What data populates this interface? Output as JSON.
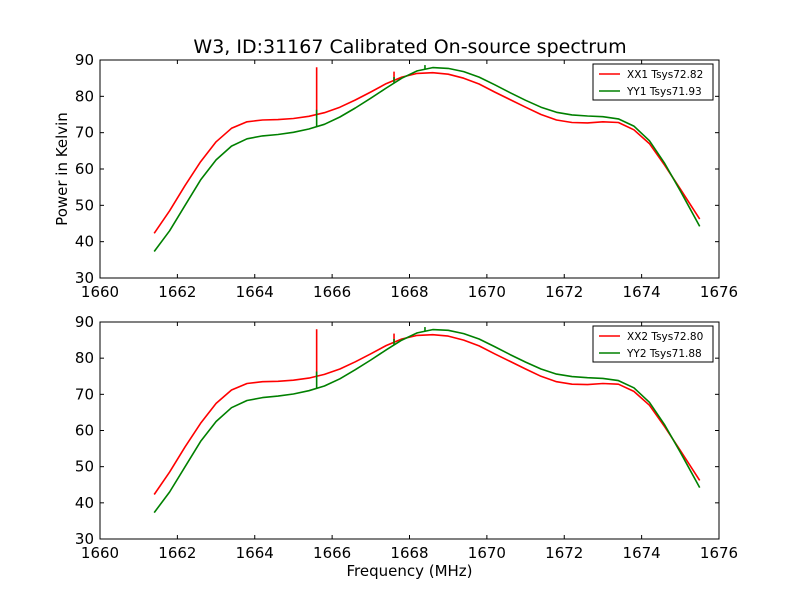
{
  "figure": {
    "title": "W3, ID:31167 Calibrated On-source spectrum"
  },
  "chart_data": [
    {
      "type": "line",
      "title": "W3, ID:31167 Calibrated On-source spectrum",
      "xlabel": "",
      "ylabel": "Power in Kelvin",
      "xlim": [
        1660,
        1676
      ],
      "ylim": [
        30,
        90
      ],
      "xticks": [
        1660,
        1662,
        1664,
        1666,
        1668,
        1670,
        1672,
        1674,
        1676
      ],
      "yticks": [
        30,
        40,
        50,
        60,
        70,
        80,
        90
      ],
      "legend": "top-right",
      "grid": false,
      "series": [
        {
          "name": "XX1 Tsys72.82",
          "color": "#ff0000",
          "x": [
            1661.4,
            1661.8,
            1662.2,
            1662.6,
            1663.0,
            1663.4,
            1663.8,
            1664.2,
            1664.6,
            1665.0,
            1665.4,
            1665.8,
            1666.2,
            1666.6,
            1667.0,
            1667.4,
            1667.8,
            1668.2,
            1668.6,
            1669.0,
            1669.4,
            1669.8,
            1670.2,
            1670.6,
            1671.0,
            1671.4,
            1671.8,
            1672.2,
            1672.6,
            1673.0,
            1673.4,
            1673.8,
            1674.2,
            1674.6,
            1675.0,
            1675.5
          ],
          "y": [
            42.3,
            48.5,
            55.5,
            62.0,
            67.5,
            71.2,
            73.0,
            73.5,
            73.6,
            73.9,
            74.5,
            75.5,
            77.0,
            79.0,
            81.2,
            83.5,
            85.3,
            86.3,
            86.5,
            86.1,
            85.0,
            83.4,
            81.2,
            79.1,
            77.0,
            75.0,
            73.5,
            72.8,
            72.7,
            73.0,
            72.8,
            70.8,
            67.0,
            61.0,
            54.5,
            46.2
          ],
          "spikes": [
            {
              "x": 1665.6,
              "y": 88.0
            },
            {
              "x": 1667.6,
              "y": 86.8
            }
          ]
        },
        {
          "name": "YY1 Tsys71.93",
          "color": "#008000",
          "x": [
            1661.4,
            1661.8,
            1662.2,
            1662.6,
            1663.0,
            1663.4,
            1663.8,
            1664.2,
            1664.6,
            1665.0,
            1665.4,
            1665.8,
            1666.2,
            1666.6,
            1667.0,
            1667.4,
            1667.8,
            1668.2,
            1668.6,
            1669.0,
            1669.4,
            1669.8,
            1670.2,
            1670.6,
            1671.0,
            1671.4,
            1671.8,
            1672.2,
            1672.6,
            1673.0,
            1673.4,
            1673.8,
            1674.2,
            1674.6,
            1675.0,
            1675.5
          ],
          "y": [
            37.3,
            43.0,
            50.0,
            57.0,
            62.5,
            66.3,
            68.3,
            69.1,
            69.5,
            70.1,
            71.0,
            72.3,
            74.3,
            76.8,
            79.5,
            82.3,
            85.0,
            87.0,
            87.9,
            87.7,
            86.8,
            85.3,
            83.2,
            81.0,
            78.9,
            77.0,
            75.6,
            74.9,
            74.6,
            74.4,
            73.8,
            71.8,
            67.8,
            61.5,
            54.0,
            44.2
          ],
          "spikes": [
            {
              "x": 1665.6,
              "y": 76.3
            },
            {
              "x": 1667.6,
              "y": 85.3
            },
            {
              "x": 1668.4,
              "y": 88.6
            }
          ]
        }
      ]
    },
    {
      "type": "line",
      "title": "",
      "xlabel": "Frequency (MHz)",
      "ylabel": "",
      "xlim": [
        1660,
        1676
      ],
      "ylim": [
        30,
        90
      ],
      "xticks": [
        1660,
        1662,
        1664,
        1666,
        1668,
        1670,
        1672,
        1674,
        1676
      ],
      "yticks": [
        30,
        40,
        50,
        60,
        70,
        80,
        90
      ],
      "legend": "top-right",
      "grid": false,
      "series": [
        {
          "name": "XX2 Tsys72.80",
          "color": "#ff0000",
          "x": [
            1661.4,
            1661.8,
            1662.2,
            1662.6,
            1663.0,
            1663.4,
            1663.8,
            1664.2,
            1664.6,
            1665.0,
            1665.4,
            1665.8,
            1666.2,
            1666.6,
            1667.0,
            1667.4,
            1667.8,
            1668.2,
            1668.6,
            1669.0,
            1669.4,
            1669.8,
            1670.2,
            1670.6,
            1671.0,
            1671.4,
            1671.8,
            1672.2,
            1672.6,
            1673.0,
            1673.4,
            1673.8,
            1674.2,
            1674.6,
            1675.0,
            1675.5
          ],
          "y": [
            42.3,
            48.5,
            55.5,
            62.0,
            67.5,
            71.2,
            73.0,
            73.5,
            73.6,
            73.9,
            74.5,
            75.5,
            77.0,
            79.0,
            81.2,
            83.5,
            85.3,
            86.3,
            86.5,
            86.1,
            85.0,
            83.4,
            81.2,
            79.1,
            77.0,
            75.0,
            73.5,
            72.8,
            72.7,
            73.0,
            72.8,
            70.8,
            67.0,
            61.0,
            54.5,
            46.2
          ],
          "spikes": [
            {
              "x": 1665.6,
              "y": 88.0
            },
            {
              "x": 1667.6,
              "y": 86.8
            }
          ]
        },
        {
          "name": "YY2 Tsys71.88",
          "color": "#008000",
          "x": [
            1661.4,
            1661.8,
            1662.2,
            1662.6,
            1663.0,
            1663.4,
            1663.8,
            1664.2,
            1664.6,
            1665.0,
            1665.4,
            1665.8,
            1666.2,
            1666.6,
            1667.0,
            1667.4,
            1667.8,
            1668.2,
            1668.6,
            1669.0,
            1669.4,
            1669.8,
            1670.2,
            1670.6,
            1671.0,
            1671.4,
            1671.8,
            1672.2,
            1672.6,
            1673.0,
            1673.4,
            1673.8,
            1674.2,
            1674.6,
            1675.0,
            1675.5
          ],
          "y": [
            37.3,
            43.0,
            50.0,
            57.0,
            62.5,
            66.3,
            68.3,
            69.1,
            69.5,
            70.1,
            71.0,
            72.3,
            74.3,
            76.8,
            79.5,
            82.3,
            85.0,
            87.0,
            87.9,
            87.7,
            86.8,
            85.3,
            83.2,
            81.0,
            78.9,
            77.0,
            75.6,
            74.9,
            74.6,
            74.4,
            73.8,
            71.8,
            67.8,
            61.5,
            54.0,
            44.2
          ],
          "spikes": [
            {
              "x": 1665.6,
              "y": 76.3
            },
            {
              "x": 1667.6,
              "y": 85.3
            },
            {
              "x": 1668.4,
              "y": 88.6
            }
          ]
        }
      ]
    }
  ]
}
